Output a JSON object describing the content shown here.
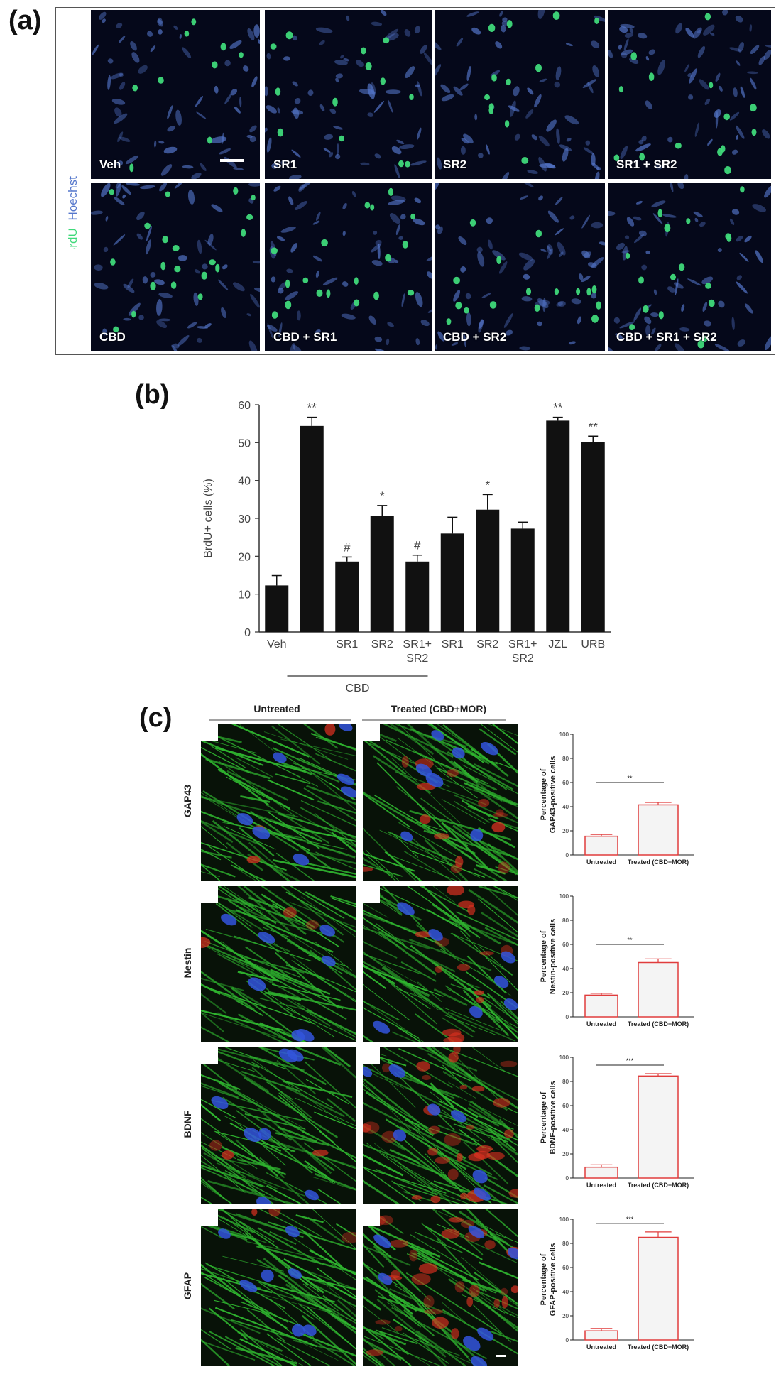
{
  "panel_labels": {
    "a": "(a)",
    "b": "(b)",
    "c": "(c)"
  },
  "panel_a": {
    "stain_brdu": "BrdU",
    "stain_hoechst": "Hoechst",
    "colors": {
      "brdu": "#3fd97a",
      "hoechst": "#5577cc",
      "background": "#05081a"
    },
    "row1": [
      "Veh",
      "SR1",
      "SR2",
      "SR1 + SR2"
    ],
    "row2": [
      "CBD",
      "CBD + SR1",
      "CBD + SR2",
      "CBD + SR1 + SR2"
    ]
  },
  "panel_c": {
    "col_headers": [
      "Untreated",
      "Treated (CBD+MOR)"
    ],
    "row_labels": [
      "GAP43",
      "Nestin",
      "BDNF",
      "GFAP"
    ],
    "colors": {
      "actin": "#2fb52f",
      "nuclei": "#3355dd",
      "marker": "#d83020",
      "bar_edge": "#e03c3c"
    }
  },
  "chart_data": [
    {
      "type": "bar",
      "id": "b",
      "categories": [
        "Veh",
        "",
        "SR1",
        "SR2",
        "SR1+ SR2",
        "SR1",
        "SR2",
        "SR1+ SR2",
        "JZL",
        "URB"
      ],
      "values": [
        12.3,
        54.4,
        18.6,
        30.6,
        18.6,
        26.0,
        32.3,
        27.3,
        55.8,
        50.1
      ],
      "errors": [
        2.6,
        2.3,
        1.2,
        2.8,
        1.7,
        4.3,
        4.0,
        1.7,
        0.9,
        1.6
      ],
      "annotations": [
        "",
        "**",
        "#",
        "*",
        "#",
        "",
        "*",
        "",
        "**",
        "**"
      ],
      "ylabel": "BrdU+ cells (%)",
      "ylim": [
        0,
        60
      ],
      "yticks": [
        0,
        10,
        20,
        30,
        40,
        50,
        60
      ],
      "group_label": "CBD",
      "bar_color": "#111111"
    },
    {
      "type": "bar",
      "id": "c-gap43",
      "categories": [
        "Untreated",
        "Treated (CBD+MOR)"
      ],
      "values": [
        15.5,
        41.5
      ],
      "errors": [
        1.5,
        2.0
      ],
      "significance": "**",
      "ylabel": "Percentage of GAP43-positive cells",
      "ylim": [
        0,
        100
      ],
      "yticks": [
        0,
        20,
        40,
        60,
        80,
        100
      ]
    },
    {
      "type": "bar",
      "id": "c-nestin",
      "categories": [
        "Untreated",
        "Treated (CBD+MOR)"
      ],
      "values": [
        18.0,
        45.0
      ],
      "errors": [
        1.5,
        3.0
      ],
      "significance": "**",
      "ylabel": "Percentage of Nestin-positive cells",
      "ylim": [
        0,
        100
      ],
      "yticks": [
        0,
        20,
        40,
        60,
        80,
        100
      ]
    },
    {
      "type": "bar",
      "id": "c-bdnf",
      "categories": [
        "Untreated",
        "Treated (CBD+MOR)"
      ],
      "values": [
        9.0,
        84.5
      ],
      "errors": [
        2.0,
        2.0
      ],
      "significance": "***",
      "ylabel": "Percentage of BDNF-positive cells",
      "ylim": [
        0,
        100
      ],
      "yticks": [
        0,
        20,
        40,
        60,
        80,
        100
      ]
    },
    {
      "type": "bar",
      "id": "c-gfap",
      "categories": [
        "Untreated",
        "Treated (CBD+MOR)"
      ],
      "values": [
        7.5,
        85.0
      ],
      "errors": [
        2.0,
        4.5
      ],
      "significance": "***",
      "ylabel": "Percentage of GFAP-positive cells",
      "ylim": [
        0,
        100
      ],
      "yticks": [
        0,
        20,
        40,
        60,
        80,
        100
      ]
    }
  ]
}
